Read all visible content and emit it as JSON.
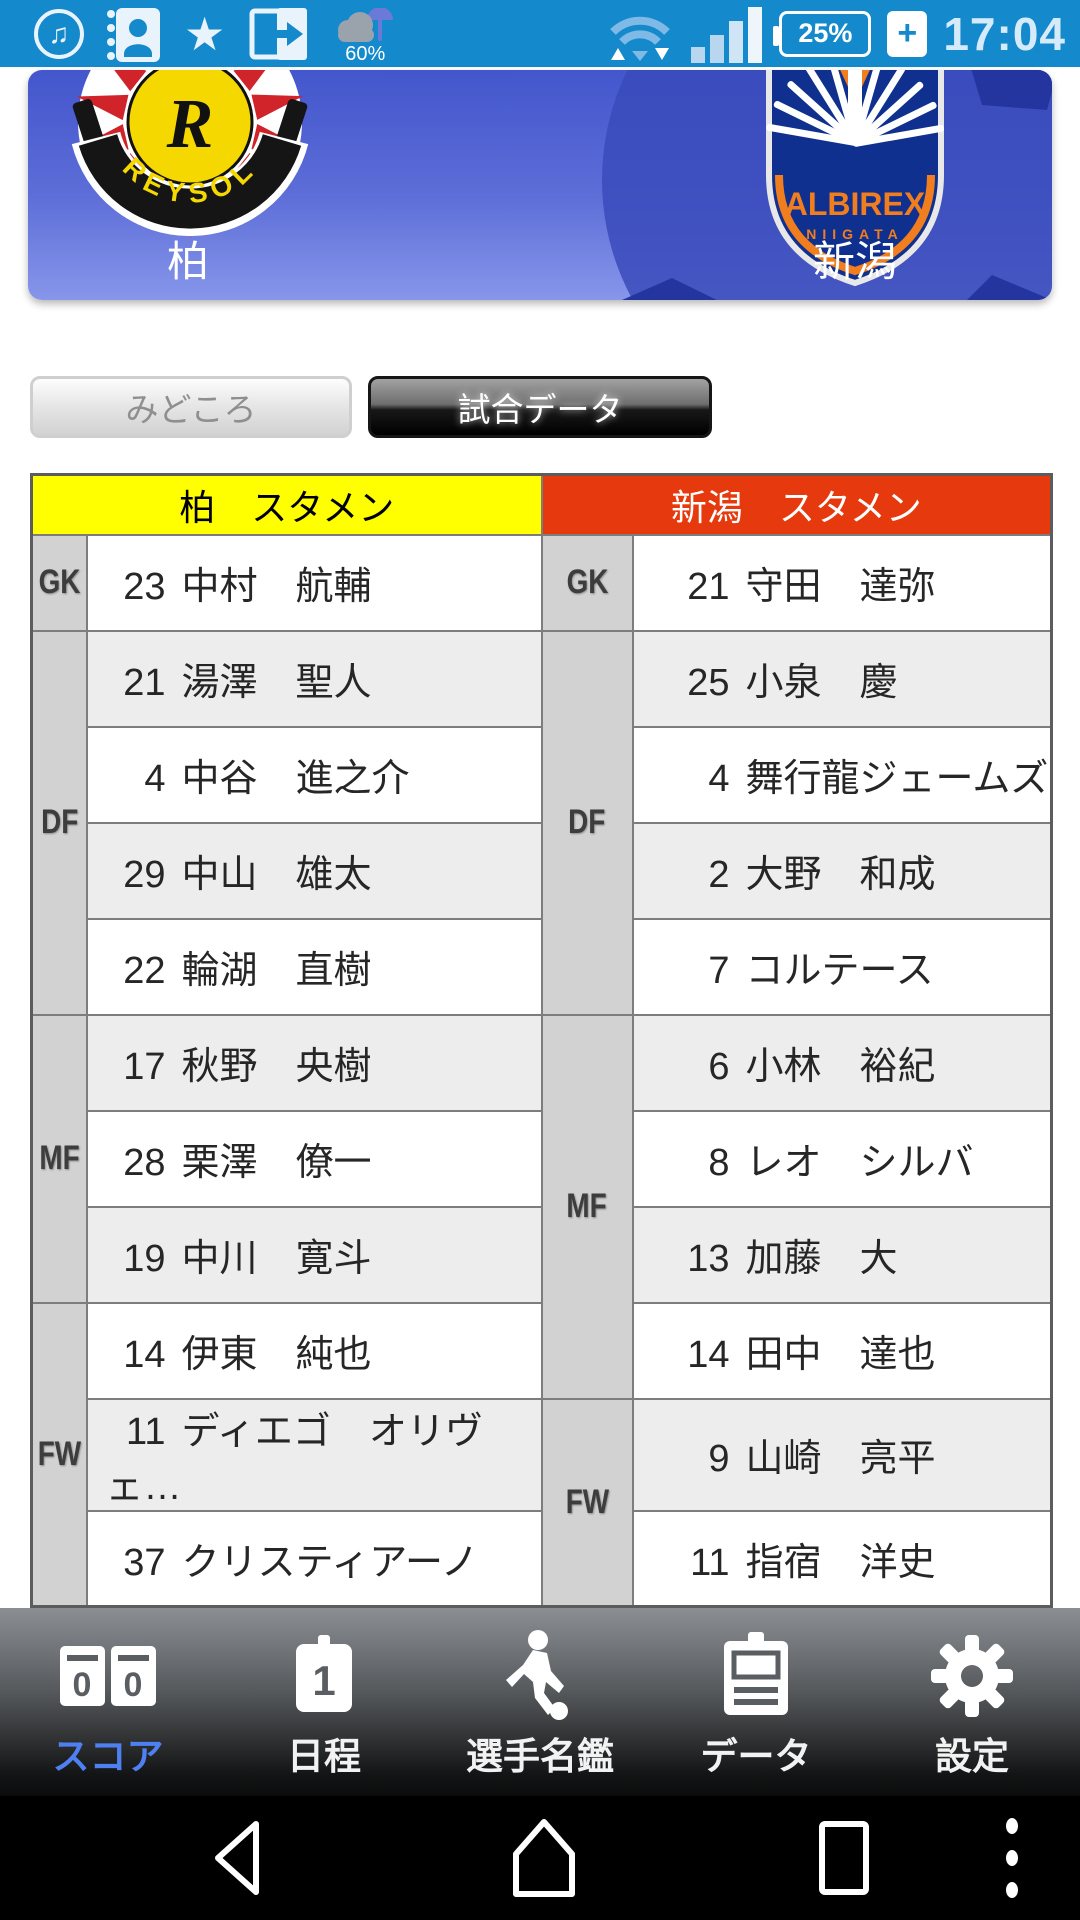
{
  "status_bar": {
    "weather_percent": "60%",
    "battery_percent": "25%",
    "charging_plus": "+",
    "time": "17:04",
    "icons": [
      "music-note",
      "contacts",
      "star",
      "screen-share",
      "weather-umbrella",
      "wifi",
      "signal",
      "battery"
    ],
    "music_glyph": "♫",
    "star_glyph": "★"
  },
  "match_header": {
    "home_team": "柏",
    "away_team": "新潟",
    "home_logo_letter": "R",
    "home_logo_text": "REYSOL",
    "away_logo_text": "ALBIREX",
    "away_logo_subtext": "NIIGATA"
  },
  "tabs": {
    "highlights": "みどころ",
    "match_data": "試合データ"
  },
  "lineup": {
    "sides": [
      {
        "team": "柏",
        "header": "柏　スタメン",
        "header_bg": "#ffff00",
        "header_color": "#000000",
        "groups": [
          {
            "pos": "GK",
            "players": [
              {
                "num": "23",
                "name": "中村　航輔"
              }
            ]
          },
          {
            "pos": "DF",
            "players": [
              {
                "num": "21",
                "name": "湯澤　聖人"
              },
              {
                "num": "4",
                "name": "中谷　進之介"
              },
              {
                "num": "29",
                "name": "中山　雄太"
              },
              {
                "num": "22",
                "name": "輪湖　直樹"
              }
            ]
          },
          {
            "pos": "MF",
            "players": [
              {
                "num": "17",
                "name": "秋野　央樹"
              },
              {
                "num": "28",
                "name": "栗澤　僚一"
              },
              {
                "num": "19",
                "name": "中川　寛斗"
              }
            ]
          },
          {
            "pos": "FW",
            "players": [
              {
                "num": "14",
                "name": "伊東　純也"
              },
              {
                "num": "11",
                "name": "ディエゴ　オリヴェ…"
              },
              {
                "num": "37",
                "name": "クリスティアーノ"
              }
            ]
          }
        ]
      },
      {
        "team": "新潟",
        "header": "新潟　スタメン",
        "header_bg": "#e63a0e",
        "header_color": "#ffffff",
        "groups": [
          {
            "pos": "GK",
            "players": [
              {
                "num": "21",
                "name": "守田　達弥"
              }
            ]
          },
          {
            "pos": "DF",
            "players": [
              {
                "num": "25",
                "name": "小泉　慶"
              },
              {
                "num": "4",
                "name": "舞行龍ジェームズ"
              },
              {
                "num": "2",
                "name": "大野　和成"
              },
              {
                "num": "7",
                "name": "コルテース"
              }
            ]
          },
          {
            "pos": "MF",
            "players": [
              {
                "num": "6",
                "name": "小林　裕紀"
              },
              {
                "num": "8",
                "name": "レオ　シルバ"
              },
              {
                "num": "13",
                "name": "加藤　大"
              },
              {
                "num": "14",
                "name": "田中　達也"
              }
            ]
          },
          {
            "pos": "FW",
            "players": [
              {
                "num": "9",
                "name": "山崎　亮平"
              },
              {
                "num": "11",
                "name": "指宿　洋史"
              }
            ]
          }
        ]
      }
    ]
  },
  "bottom_nav": {
    "active_color": "#4e80f2",
    "score_icon_digits": [
      "0",
      "0"
    ],
    "calendar_day": "1",
    "items": [
      {
        "label": "スコア",
        "icon": "scoreboard-icon",
        "active": true
      },
      {
        "label": "日程",
        "icon": "calendar-icon",
        "active": false
      },
      {
        "label": "選手名鑑",
        "icon": "soccer-player-icon",
        "active": false
      },
      {
        "label": "データ",
        "icon": "clipboard-icon",
        "active": false
      },
      {
        "label": "設定",
        "icon": "gear-icon",
        "active": false
      }
    ]
  },
  "android_nav": {
    "icons": [
      "back",
      "home",
      "recents",
      "menu"
    ]
  },
  "colors": {
    "status_bar_blue": "#1489cb",
    "card_blue_top": "#4356cc",
    "card_blue_bottom": "#8796ea",
    "kashiwa_yellow": "#ffff00",
    "niigata_orange": "#e63a0e",
    "active_tab_blue": "#4e80f2"
  }
}
